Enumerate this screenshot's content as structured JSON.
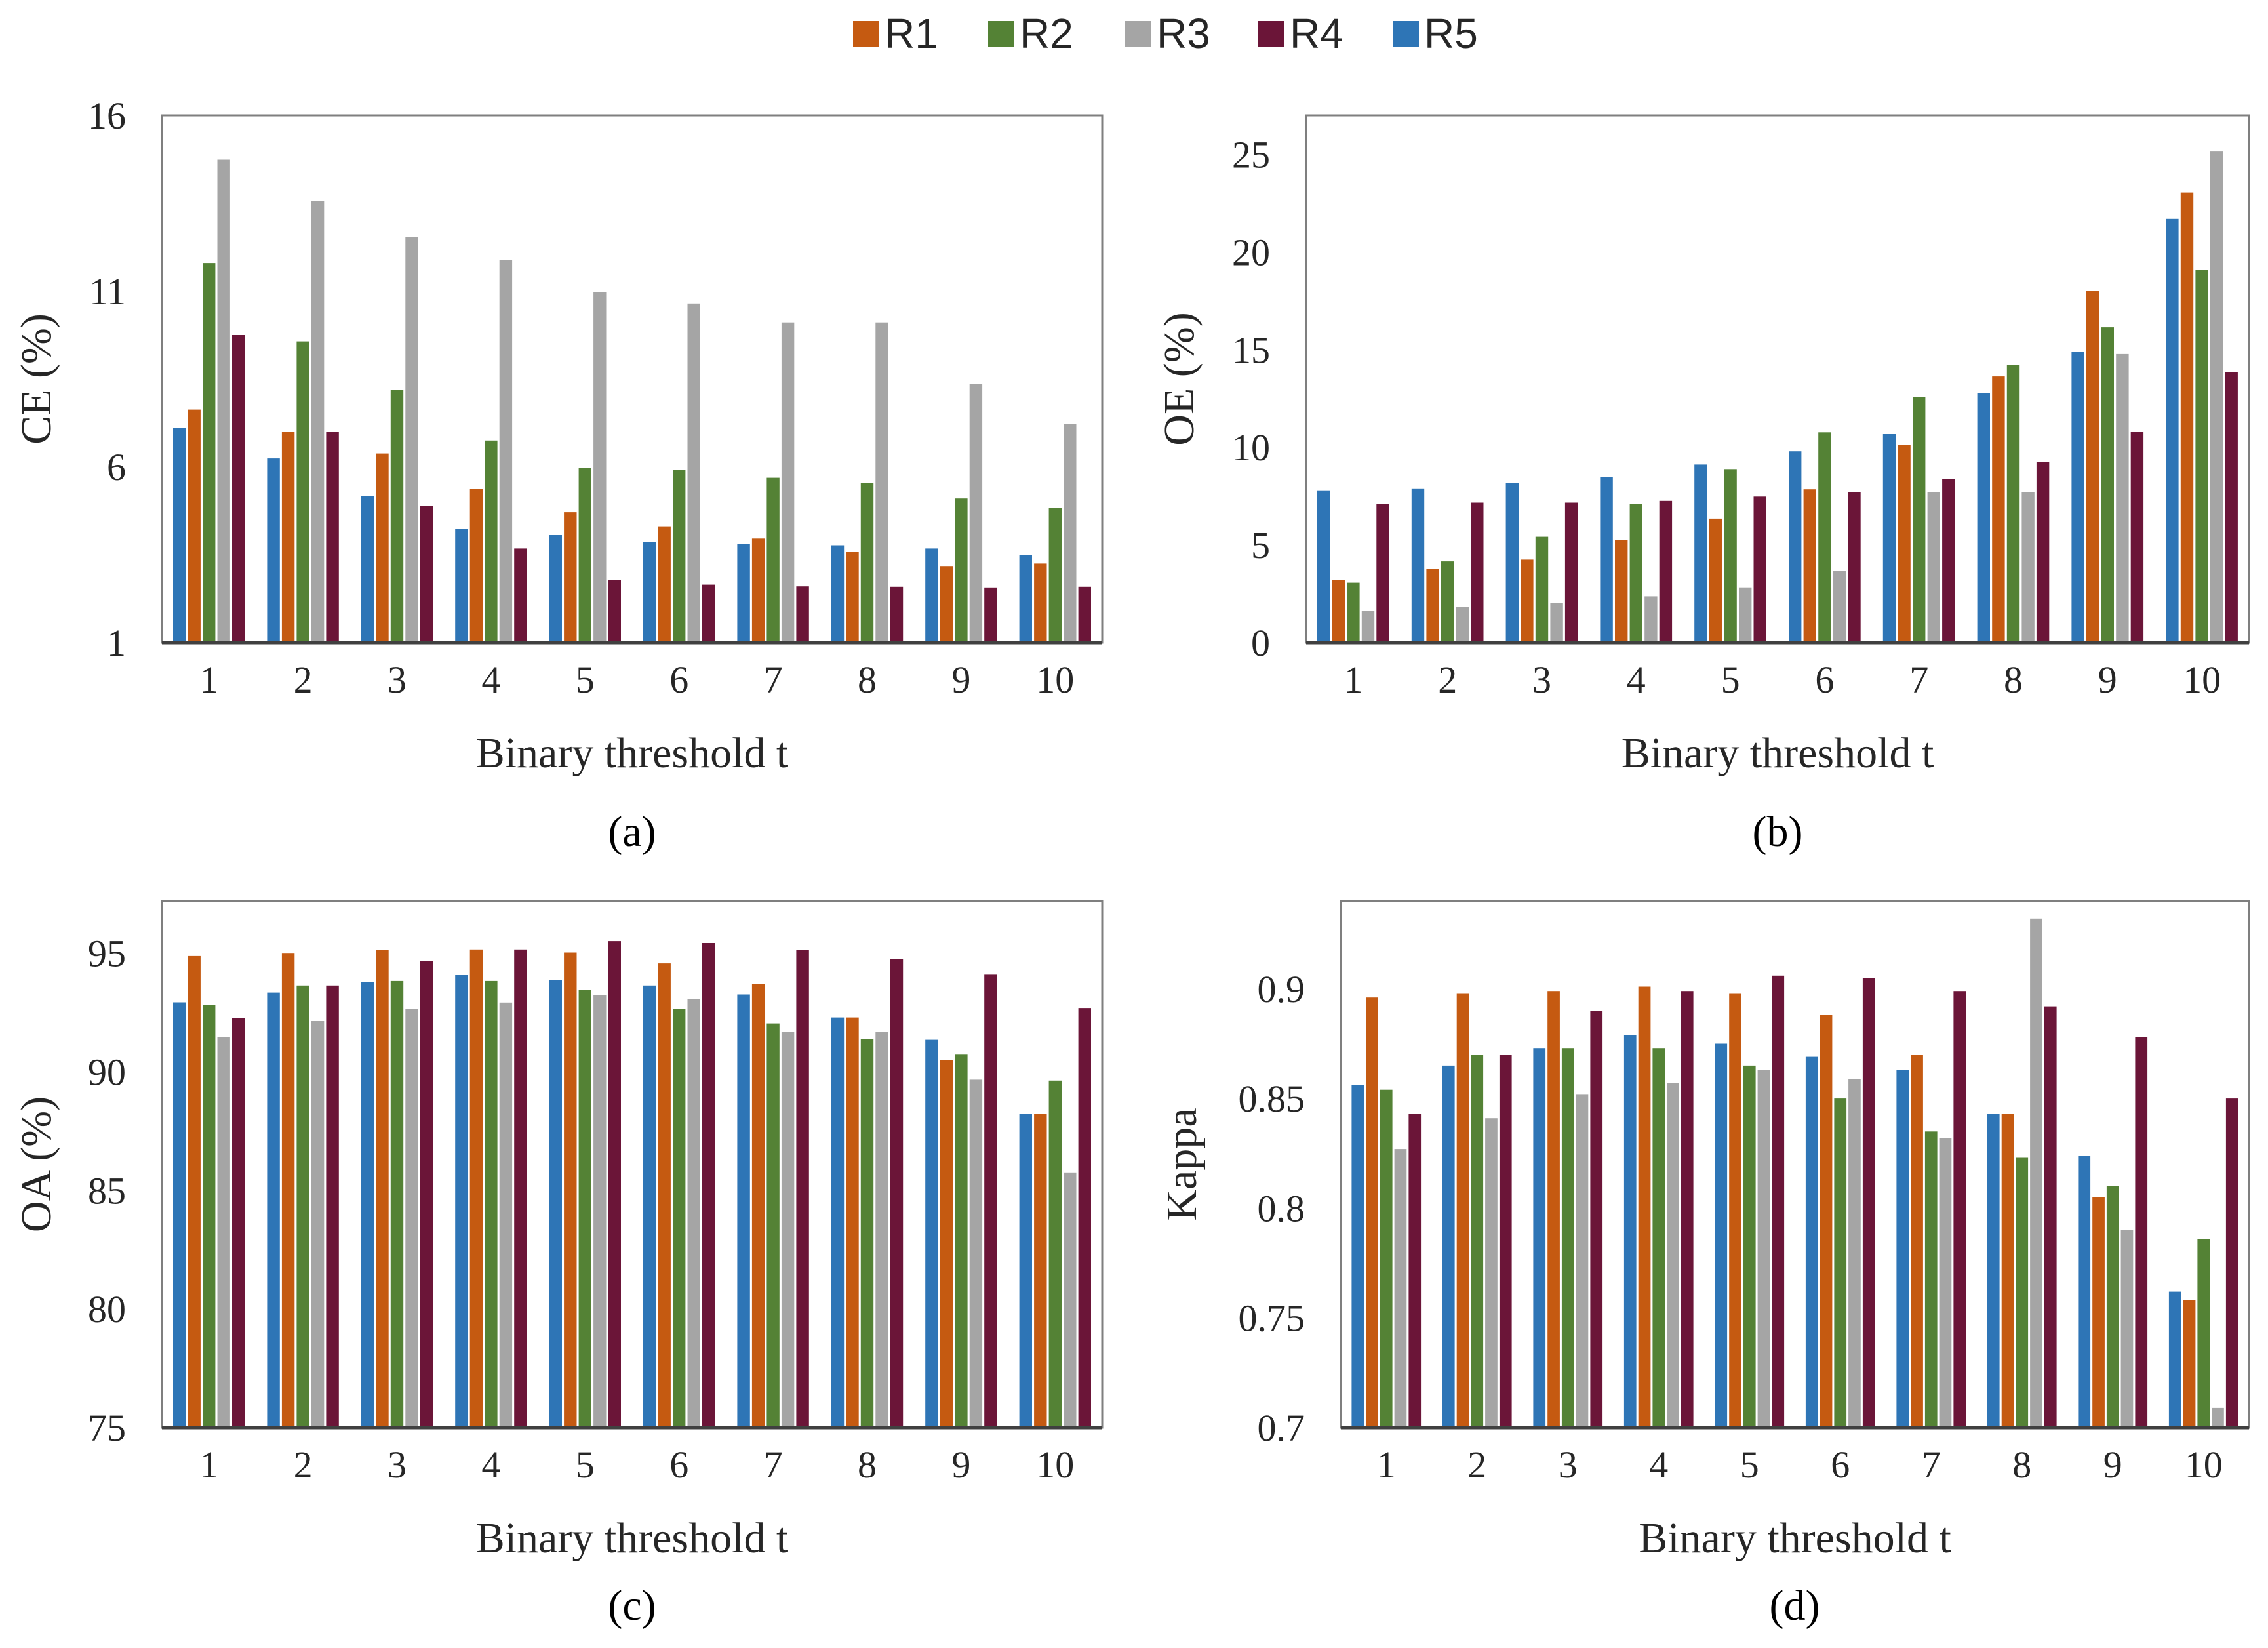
{
  "legend": [
    {
      "name": "R1",
      "color": "#C55A11"
    },
    {
      "name": "R2",
      "color": "#548235"
    },
    {
      "name": "R3",
      "color": "#A5A5A5"
    },
    {
      "name": "R4",
      "color": "#6B1538"
    },
    {
      "name": "R5",
      "color": "#2E75B6"
    }
  ],
  "chart_data": [
    {
      "type": "bar",
      "panel_label": "(a)",
      "xlabel": "Binary threshold t",
      "ylabel": "CE (%)",
      "ylim": [
        1,
        16
      ],
      "yticks": [
        "1",
        "6",
        "11",
        "16"
      ],
      "categories": [
        "1",
        "2",
        "3",
        "4",
        "5",
        "6",
        "7",
        "8",
        "9",
        "10"
      ],
      "series": [
        {
          "name": "R5",
          "color": "#2E75B6",
          "values": [
            7.1,
            6.24,
            5.18,
            4.23,
            4.06,
            3.87,
            3.81,
            3.77,
            3.68,
            3.5
          ]
        },
        {
          "name": "R1",
          "color": "#C55A11",
          "values": [
            7.63,
            6.99,
            6.38,
            5.37,
            4.71,
            4.31,
            3.96,
            3.58,
            3.18,
            3.25
          ]
        },
        {
          "name": "R2",
          "color": "#548235",
          "values": [
            11.8,
            9.57,
            8.2,
            6.75,
            5.98,
            5.91,
            5.69,
            5.55,
            5.1,
            4.83
          ]
        },
        {
          "name": "R3",
          "color": "#A5A5A5",
          "values": [
            14.74,
            13.57,
            12.54,
            11.88,
            10.97,
            10.65,
            10.11,
            10.11,
            8.36,
            7.22
          ]
        },
        {
          "name": "R4",
          "color": "#6B1538",
          "values": [
            9.75,
            7.0,
            4.88,
            3.68,
            2.79,
            2.65,
            2.6,
            2.59,
            2.57,
            2.59
          ]
        }
      ]
    },
    {
      "type": "bar",
      "panel_label": "(b)",
      "xlabel": "Binary threshold t",
      "ylabel": "OE (%)",
      "ylim": [
        0,
        27
      ],
      "yticks": [
        "0",
        "5",
        "10",
        "15",
        "20",
        "25"
      ],
      "categories": [
        "1",
        "2",
        "3",
        "4",
        "5",
        "6",
        "7",
        "8",
        "9",
        "10"
      ],
      "series": [
        {
          "name": "R5",
          "color": "#2E75B6",
          "values": [
            7.8,
            7.9,
            8.16,
            8.47,
            9.12,
            9.8,
            10.68,
            12.77,
            14.9,
            21.7
          ]
        },
        {
          "name": "R1",
          "color": "#C55A11",
          "values": [
            3.2,
            3.78,
            4.25,
            5.24,
            6.35,
            7.85,
            10.13,
            13.63,
            18.0,
            23.05
          ]
        },
        {
          "name": "R2",
          "color": "#548235",
          "values": [
            3.07,
            4.16,
            5.42,
            7.12,
            8.89,
            10.77,
            12.59,
            14.23,
            16.15,
            19.1
          ]
        },
        {
          "name": "R3",
          "color": "#A5A5A5",
          "values": [
            1.64,
            1.82,
            2.04,
            2.37,
            2.83,
            3.69,
            7.7,
            7.7,
            14.78,
            25.15
          ]
        },
        {
          "name": "R4",
          "color": "#6B1538",
          "values": [
            7.1,
            7.17,
            7.17,
            7.26,
            7.48,
            7.7,
            8.39,
            9.27,
            10.8,
            13.87
          ]
        }
      ]
    },
    {
      "type": "bar",
      "panel_label": "(c)",
      "xlabel": "Binary threshold t",
      "ylabel": "OA (%)",
      "ylim": [
        75,
        97.2
      ],
      "yticks": [
        "75",
        "80",
        "85",
        "90",
        "95"
      ],
      "categories": [
        "1",
        "2",
        "3",
        "4",
        "5",
        "6",
        "7",
        "8",
        "9",
        "10"
      ],
      "series": [
        {
          "name": "R5",
          "color": "#2E75B6",
          "values": [
            92.93,
            93.34,
            93.79,
            94.09,
            93.86,
            93.64,
            93.26,
            92.29,
            91.35,
            88.22
          ]
        },
        {
          "name": "R1",
          "color": "#C55A11",
          "values": [
            94.88,
            95.01,
            95.13,
            95.16,
            95.03,
            94.57,
            93.7,
            92.29,
            90.49,
            88.22
          ]
        },
        {
          "name": "R2",
          "color": "#548235",
          "values": [
            92.81,
            93.64,
            93.83,
            93.83,
            93.46,
            92.66,
            92.04,
            91.39,
            90.75,
            89.63
          ]
        },
        {
          "name": "R3",
          "color": "#A5A5A5",
          "values": [
            91.47,
            92.14,
            92.66,
            92.92,
            93.22,
            93.07,
            91.69,
            91.69,
            89.67,
            85.76
          ]
        },
        {
          "name": "R4",
          "color": "#6B1538",
          "values": [
            92.26,
            93.64,
            94.66,
            95.16,
            95.51,
            95.43,
            95.13,
            94.76,
            94.12,
            92.69
          ]
        }
      ]
    },
    {
      "type": "bar",
      "panel_label": "(d)",
      "xlabel": "Binary threshold t",
      "ylabel": "Kappa",
      "ylim": [
        0.7,
        0.94
      ],
      "yticks": [
        "0.7",
        "0.75",
        "0.8",
        "0.85",
        "0.9"
      ],
      "categories": [
        "1",
        "2",
        "3",
        "4",
        "5",
        "6",
        "7",
        "8",
        "9",
        "10"
      ],
      "series": [
        {
          "name": "R5",
          "color": "#2E75B6",
          "values": [
            0.856,
            0.865,
            0.873,
            0.879,
            0.875,
            0.869,
            0.863,
            0.843,
            0.824,
            0.762
          ]
        },
        {
          "name": "R1",
          "color": "#C55A11",
          "values": [
            0.896,
            0.898,
            0.899,
            0.901,
            0.898,
            0.888,
            0.87,
            0.843,
            0.805,
            0.758
          ]
        },
        {
          "name": "R2",
          "color": "#548235",
          "values": [
            0.854,
            0.87,
            0.873,
            0.873,
            0.865,
            0.85,
            0.835,
            0.823,
            0.81,
            0.786
          ]
        },
        {
          "name": "R3",
          "color": "#A5A5A5",
          "values": [
            0.827,
            0.841,
            0.852,
            0.857,
            0.863,
            0.859,
            0.832,
            0.932,
            0.79,
            0.709
          ]
        },
        {
          "name": "R4",
          "color": "#6B1538",
          "values": [
            0.843,
            0.87,
            0.89,
            0.899,
            0.906,
            0.905,
            0.899,
            0.892,
            0.878,
            0.85
          ]
        }
      ]
    }
  ]
}
